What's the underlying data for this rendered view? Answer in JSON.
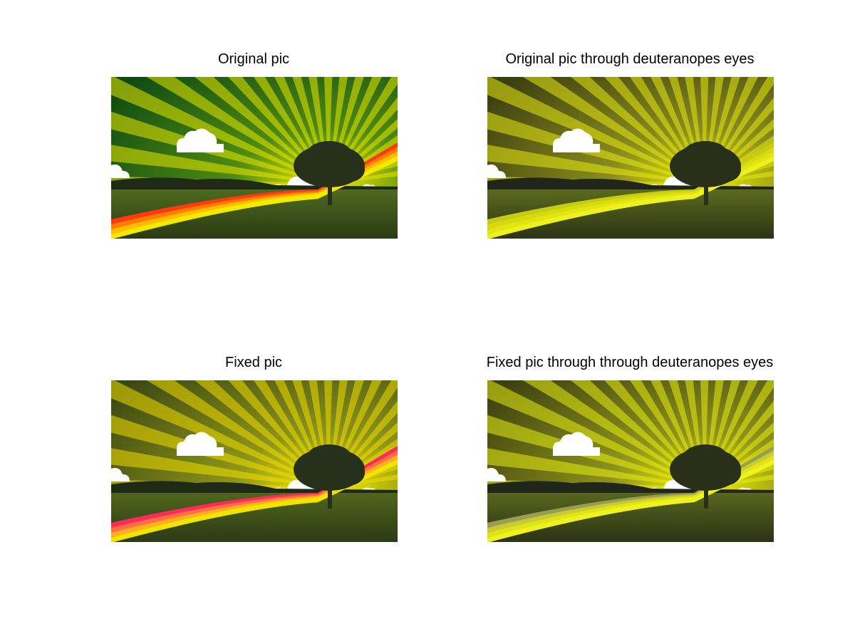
{
  "figure": {
    "titles": [
      "Original pic",
      "Original pic through deuteranopes eyes",
      "Fixed pic",
      "Fixed pic through through deuteranopes eyes"
    ]
  },
  "panels": [
    {
      "name": "original",
      "sky_outer": "#0f4a14",
      "sky_mid": "#4f8a10",
      "sky_inner": "#f4ec00",
      "ray_color": "#e8e800",
      "ground": "#4e6b1e",
      "ground_dark": "#2a3a14",
      "hills": "#1e2a16",
      "stripes": [
        "#ff3a12",
        "#ff7d00",
        "#ffbc00",
        "#f3ea00"
      ],
      "tree": "#26301a"
    },
    {
      "name": "original-deuteranope",
      "sky_outer": "#3a3d10",
      "sky_mid": "#8a8c1c",
      "sky_inner": "#eef000",
      "ray_color": "#e6ea10",
      "ground": "#5a6a1e",
      "ground_dark": "#2c3414",
      "hills": "#20261a",
      "stripes": [
        "#c8cc10",
        "#d6da10",
        "#e2e610",
        "#eef020"
      ],
      "tree": "#28301a"
    },
    {
      "name": "fixed",
      "sky_outer": "#3c4812",
      "sky_mid": "#8c9418",
      "sky_inner": "#fff000",
      "ray_color": "#f0dc00",
      "ground": "#50661c",
      "ground_dark": "#2c3a14",
      "hills": "#1f2a16",
      "stripes": [
        "#ff2a5a",
        "#ff7040",
        "#ffb020",
        "#f0e400"
      ],
      "tree": "#26301a"
    },
    {
      "name": "fixed-deuteranope",
      "sky_outer": "#3c4010",
      "sky_mid": "#8e921a",
      "sky_inner": "#f4f400",
      "ray_color": "#e6ee10",
      "ground": "#56661e",
      "ground_dark": "#2c3414",
      "hills": "#20261a",
      "stripes": [
        "#9a9e50",
        "#c8cc30",
        "#e0e418",
        "#f0f220"
      ],
      "tree": "#28301a"
    }
  ]
}
